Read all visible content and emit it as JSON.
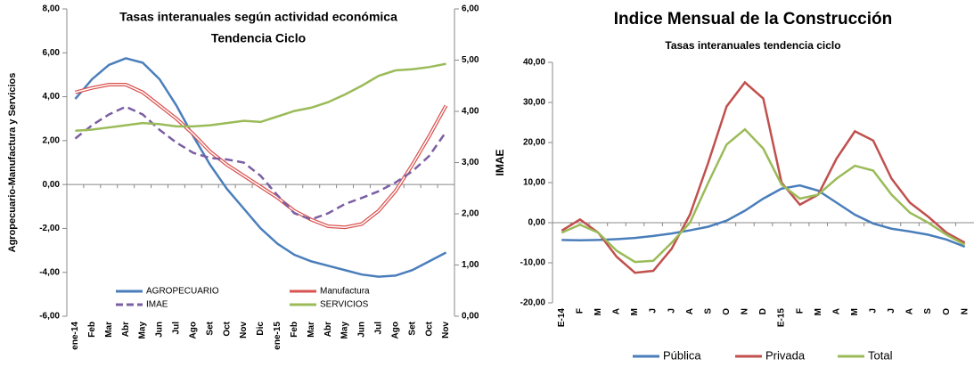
{
  "chart_data": [
    {
      "type": "line",
      "title": "Tasas interanuales según actividad económica",
      "subtitle": "Tendencia Ciclo",
      "ylabel": "Agropecuario-Manufactura y Servicios",
      "y2label": "IMAE",
      "categories": [
        "ene-14",
        "Feb",
        "Mar",
        "Abr",
        "May",
        "Jun",
        "Jul",
        "Ago",
        "Set",
        "Oct",
        "Nov",
        "Dic",
        "ene-15",
        "Feb",
        "Mar",
        "Abr",
        "May",
        "Jun",
        "Jul",
        "Ago",
        "Set",
        "Oct",
        "Nov"
      ],
      "ylim": [
        -6,
        8
      ],
      "yticks": [
        {
          "value": -6,
          "label": "-6,00"
        },
        {
          "value": -4,
          "label": "-4,00"
        },
        {
          "value": -2,
          "label": "-2,00"
        },
        {
          "value": 0,
          "label": "0,00"
        },
        {
          "value": 2,
          "label": "2,00"
        },
        {
          "value": 4,
          "label": "4,00"
        },
        {
          "value": 6,
          "label": "6,00"
        },
        {
          "value": 8,
          "label": "8,00"
        }
      ],
      "y2lim": [
        0,
        6
      ],
      "y2ticks": [
        {
          "value": 0,
          "label": "0,00"
        },
        {
          "value": 1,
          "label": "1,00"
        },
        {
          "value": 2,
          "label": "2,00"
        },
        {
          "value": 3,
          "label": "3,00"
        },
        {
          "value": 4,
          "label": "4,00"
        },
        {
          "value": 5,
          "label": "5,00"
        },
        {
          "value": 6,
          "label": "6,00"
        }
      ],
      "legend": "bottom-inside",
      "series": [
        {
          "name": "AGROPECUARIO",
          "color": "#4a7ebb",
          "values": [
            3.9,
            4.8,
            5.45,
            5.75,
            5.55,
            4.8,
            3.6,
            2.2,
            0.9,
            -0.2,
            -1.1,
            -2.0,
            -2.7,
            -3.2,
            -3.5,
            -3.7,
            -3.9,
            -4.1,
            -4.2,
            -4.15,
            -3.9,
            -3.5,
            -3.1
          ]
        },
        {
          "name": "Manufactura",
          "color": "#d9534f",
          "double": true,
          "values": [
            4.2,
            4.4,
            4.55,
            4.55,
            4.2,
            3.6,
            3.0,
            2.3,
            1.5,
            0.9,
            0.4,
            -0.1,
            -0.6,
            -1.2,
            -1.6,
            -1.9,
            -1.95,
            -1.8,
            -1.2,
            -0.3,
            0.9,
            2.2,
            3.6
          ]
        },
        {
          "name": "IMAE",
          "color": "#7b5fa3",
          "dashed": true,
          "axis": "y2",
          "values": [
            3.47,
            3.73,
            3.94,
            4.09,
            3.94,
            3.64,
            3.39,
            3.19,
            3.09,
            3.06,
            3.0,
            2.74,
            2.36,
            2.01,
            1.89,
            2.01,
            2.19,
            2.31,
            2.44,
            2.61,
            2.83,
            3.13,
            3.6
          ]
        },
        {
          "name": "SERVICIOS",
          "color": "#9bbb59",
          "values": [
            2.45,
            2.5,
            2.6,
            2.7,
            2.8,
            2.75,
            2.65,
            2.65,
            2.7,
            2.8,
            2.9,
            2.85,
            3.1,
            3.35,
            3.5,
            3.75,
            4.1,
            4.5,
            4.95,
            5.2,
            5.25,
            5.35,
            5.5
          ]
        }
      ]
    },
    {
      "type": "line",
      "title": "Indice Mensual de la Construcción",
      "subtitle": "Tasas interanuales  tendencia ciclo",
      "categories": [
        "E-14",
        "F",
        "M",
        "A",
        "M",
        "J",
        "J",
        "A",
        "S",
        "O",
        "N",
        "D",
        "E-15",
        "F",
        "M",
        "A",
        "M",
        "J",
        "J",
        "A",
        "S",
        "O",
        "N"
      ],
      "ylim": [
        -20,
        40
      ],
      "yticks": [
        {
          "value": -20,
          "label": "-20,00"
        },
        {
          "value": -10,
          "label": "-10,00"
        },
        {
          "value": 0,
          "label": "0,00"
        },
        {
          "value": 10,
          "label": "10,00"
        },
        {
          "value": 20,
          "label": "20,00"
        },
        {
          "value": 30,
          "label": "30,00"
        },
        {
          "value": 40,
          "label": "40,00"
        }
      ],
      "legend": "bottom",
      "series": [
        {
          "name": "Pública",
          "color": "#4a7ebb",
          "values": [
            -4.3,
            -4.4,
            -4.3,
            -4.1,
            -3.8,
            -3.3,
            -2.7,
            -1.9,
            -1.0,
            0.5,
            3.0,
            6.0,
            8.5,
            9.3,
            8.0,
            5.0,
            2.0,
            -0.2,
            -1.5,
            -2.2,
            -3.0,
            -4.2,
            -6.0
          ]
        },
        {
          "name": "Privada",
          "color": "#c0504d",
          "values": [
            -2,
            0.8,
            -2.5,
            -8.5,
            -12.5,
            -12,
            -6.5,
            2,
            15,
            29,
            35,
            31,
            10,
            4.5,
            7,
            16,
            22.8,
            20.5,
            11,
            5,
            1.5,
            -2.5,
            -5
          ]
        },
        {
          "name": "Total",
          "color": "#9bbb59",
          "values": [
            -2.5,
            -0.5,
            -2.5,
            -7,
            -9.8,
            -9.5,
            -5,
            0,
            10,
            19.5,
            23.3,
            18.5,
            9.5,
            6,
            7,
            11,
            14.2,
            13,
            7,
            2.5,
            0,
            -3,
            -5.5
          ]
        }
      ]
    }
  ]
}
